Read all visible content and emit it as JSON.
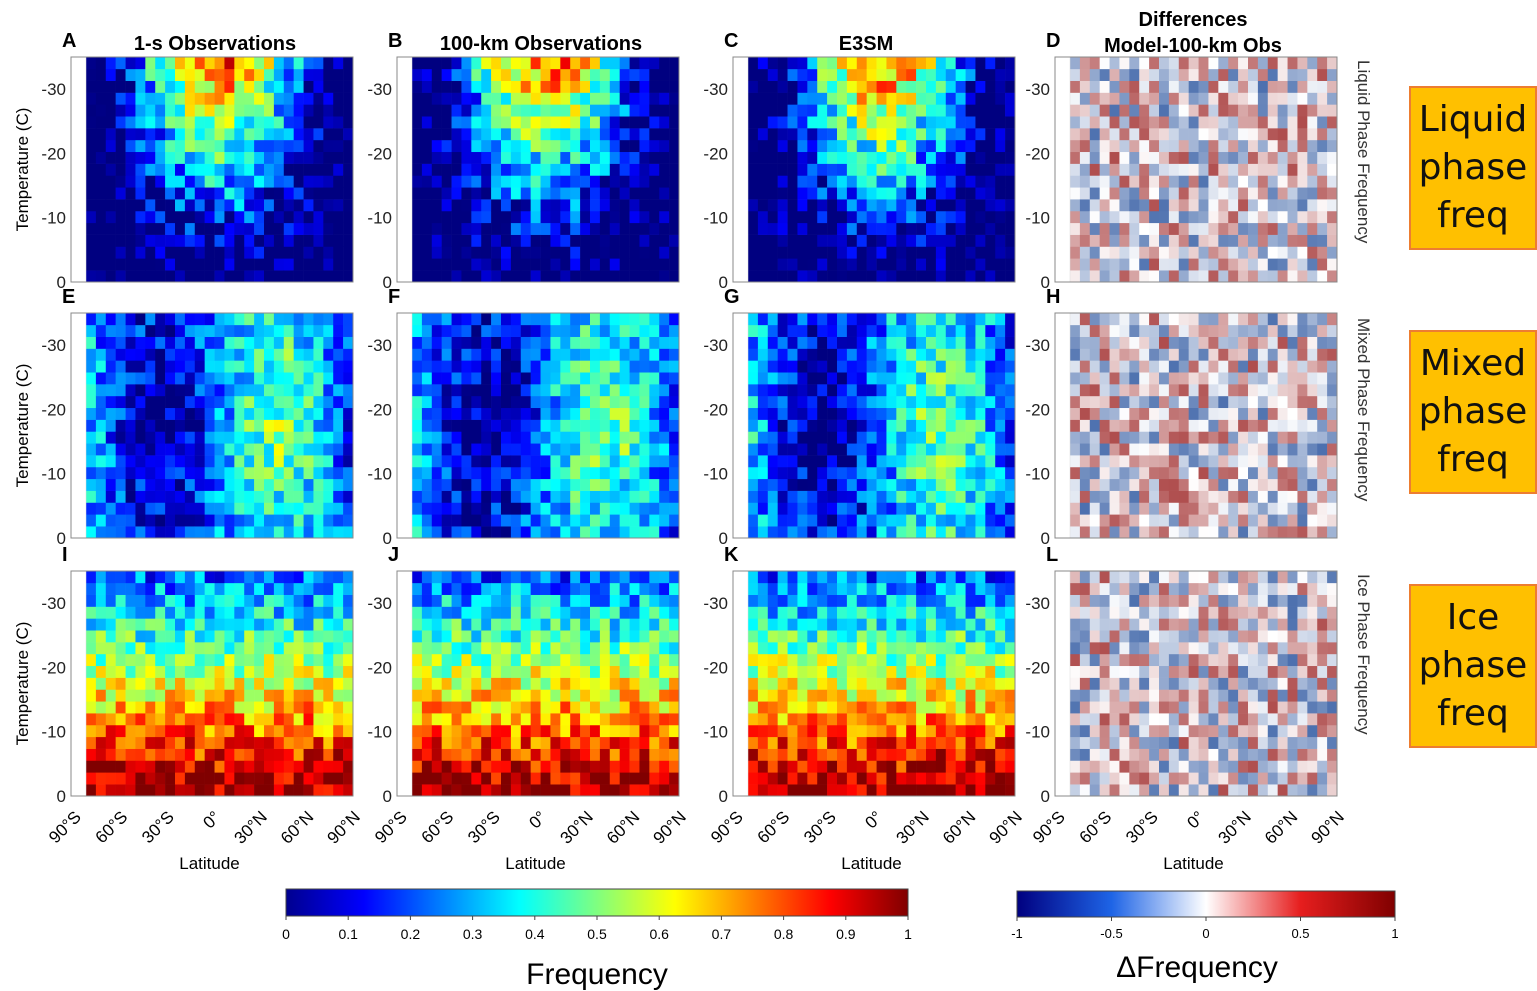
{
  "chart_data": {
    "type": "heatmap",
    "panels": [
      {
        "letter": "A",
        "title": "1-s Observations",
        "row": "liquid",
        "scale": "frequency"
      },
      {
        "letter": "B",
        "title": "100-km Observations",
        "row": "liquid",
        "scale": "frequency"
      },
      {
        "letter": "C",
        "title": "E3SM",
        "row": "liquid",
        "scale": "frequency"
      },
      {
        "letter": "D",
        "title": "Differences Model-100-km Obs",
        "row": "liquid",
        "scale": "difference"
      },
      {
        "letter": "E",
        "title": "",
        "row": "mixed",
        "scale": "frequency"
      },
      {
        "letter": "F",
        "title": "",
        "row": "mixed",
        "scale": "frequency"
      },
      {
        "letter": "G",
        "title": "",
        "row": "mixed",
        "scale": "frequency"
      },
      {
        "letter": "H",
        "title": "",
        "row": "mixed",
        "scale": "difference"
      },
      {
        "letter": "I",
        "title": "",
        "row": "ice",
        "scale": "frequency"
      },
      {
        "letter": "J",
        "title": "",
        "row": "ice",
        "scale": "frequency"
      },
      {
        "letter": "K",
        "title": "",
        "row": "ice",
        "scale": "frequency"
      },
      {
        "letter": "L",
        "title": "",
        "row": "ice",
        "scale": "difference"
      }
    ],
    "col_titles": [
      "1-s Observations",
      "100-km Observations",
      "E3SM",
      "Differences",
      "Model-100-km Obs"
    ],
    "x_ticks": [
      "90°S",
      "60°S",
      "30°S",
      "0°",
      "30°N",
      "60°N",
      "90°N"
    ],
    "x_range": [
      -90,
      90
    ],
    "y_ticks": [
      "-30",
      "-20",
      "-10",
      "0"
    ],
    "y_range": [
      -35,
      0
    ],
    "xlabel": "Latitude",
    "ylabel": "Temperature (C)",
    "right_labels": [
      "Liquid Phase Frequency",
      "Mixed Phase Frequency",
      "Ice Phase Frequency"
    ],
    "colorbar_frequency": {
      "label": "Frequency",
      "ticks": [
        "0",
        "0.1",
        "0.2",
        "0.3",
        "0.4",
        "0.5",
        "0.6",
        "0.7",
        "0.8",
        "0.9",
        "1"
      ],
      "range": [
        0,
        1
      ],
      "colormap": "jet"
    },
    "colorbar_difference": {
      "label": "ΔFrequency",
      "ticks": [
        "-1",
        "-0.5",
        "0",
        "0.5",
        "1"
      ],
      "range": [
        -1,
        1
      ],
      "colormap": "blue-white-red"
    },
    "grid": true
  },
  "row_boxes": [
    {
      "line1": "Liquid",
      "line2": "phase",
      "line3": "freq"
    },
    {
      "line1": "Mixed",
      "line2": "phase",
      "line3": "freq"
    },
    {
      "line1": "Ice",
      "line2": "phase",
      "line3": "freq"
    }
  ],
  "colors": {
    "box_fill": "#ffc000",
    "box_border": "#ed7d31"
  }
}
